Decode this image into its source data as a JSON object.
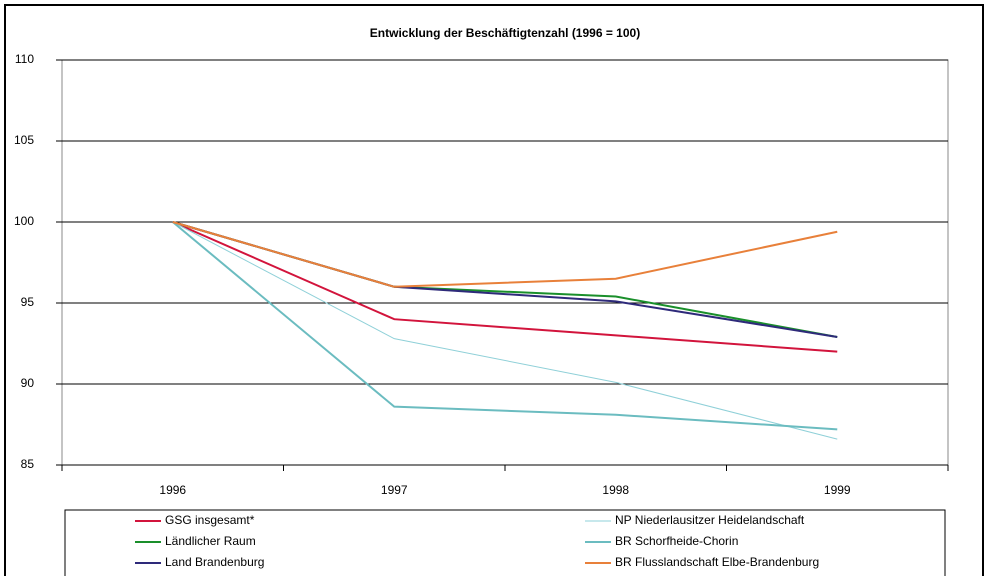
{
  "chart_data": {
    "type": "line",
    "title": "Entwicklung der Beschäftigtenzahl (1996 = 100)",
    "categories": [
      "1996",
      "1997",
      "1998",
      "1999"
    ],
    "series": [
      {
        "name": "GSG insgesamt*",
        "color": "#d2143c",
        "line_width": 2,
        "values": [
          100,
          94.0,
          93.0,
          92.0
        ]
      },
      {
        "name": "Ländlicher Raum",
        "color": "#1a8f2b",
        "line_width": 2,
        "values": [
          100,
          96.0,
          95.4,
          92.9
        ]
      },
      {
        "name": "Land Brandenburg",
        "color": "#2e2a7a",
        "line_width": 2,
        "values": [
          100,
          96.0,
          95.1,
          92.9
        ]
      },
      {
        "name": "NP Niederlausitzer Heidelandschaft",
        "color": "#8fd0d8",
        "line_width": 1,
        "values": [
          100,
          92.8,
          90.1,
          86.6
        ]
      },
      {
        "name": "BR Schorfheide-Chorin",
        "color": "#6bbcc0",
        "line_width": 2,
        "values": [
          100,
          88.6,
          88.1,
          87.2
        ]
      },
      {
        "name": "BR Flusslandschaft Elbe-Brandenburg",
        "color": "#e8803a",
        "line_width": 2,
        "values": [
          100,
          96.0,
          96.5,
          99.4
        ]
      }
    ],
    "ylim": [
      85,
      110
    ],
    "yticks": [
      85,
      90,
      95,
      100,
      105,
      110
    ],
    "grid": true
  }
}
